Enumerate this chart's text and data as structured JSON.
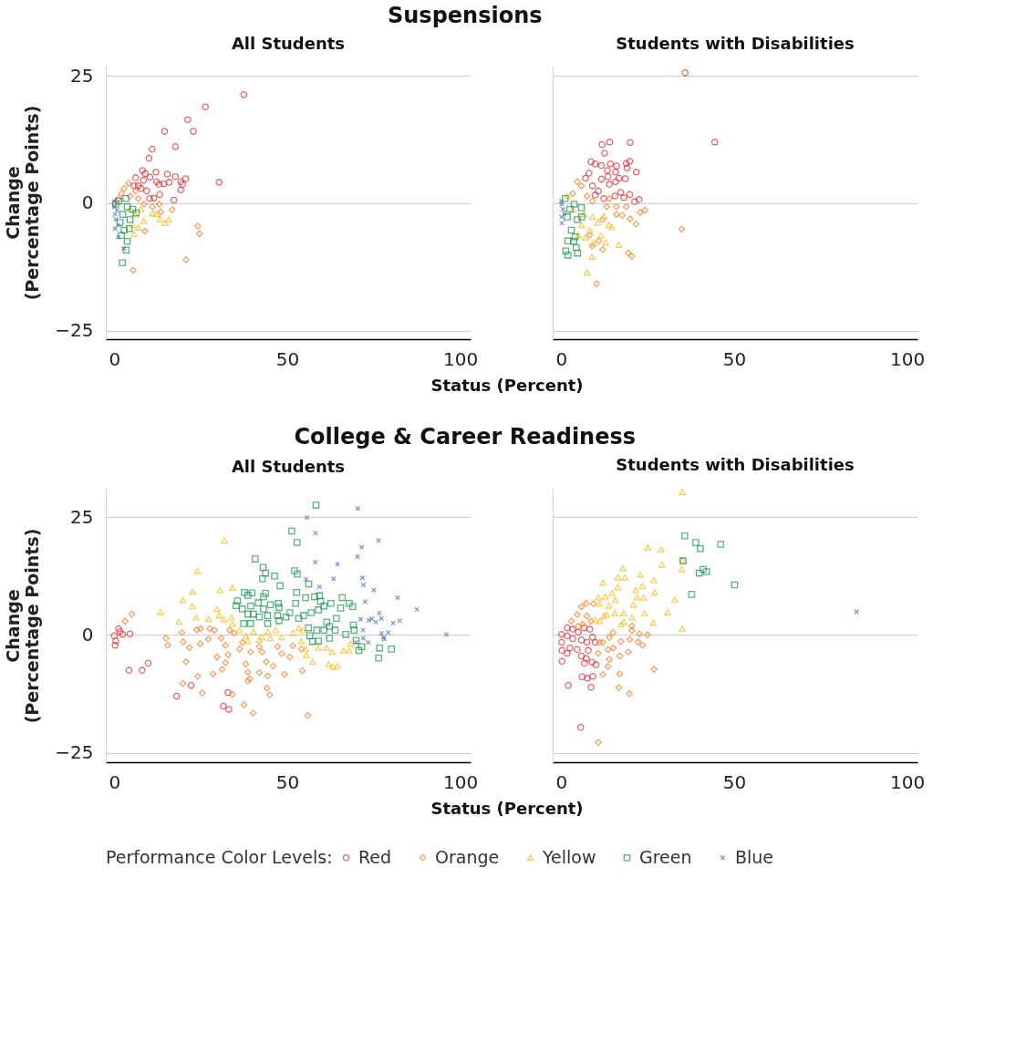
{
  "chart_data": [
    {
      "type": "scatter",
      "title": "Suspensions",
      "subtitle": "All Students",
      "xlabel": "Status (Percent)",
      "ylabel": "Change\n(Percentage Points)",
      "xlim": [
        -2.5,
        103
      ],
      "ylim": [
        -26.7,
        27
      ],
      "xticks": [
        0,
        50,
        100
      ],
      "yticks": [
        -25,
        0,
        25
      ],
      "grid": "y",
      "legend": "bottom",
      "legend_title": "Performance Color Levels:",
      "series": [
        {
          "name": "Red",
          "color": "#e31e25",
          "marker": "circle",
          "x": [
            37.4,
            26.3,
            21.2,
            14.5,
            22.8,
            17.6,
            10.9,
            10.0,
            30.3,
            8.1,
            12.0,
            15.3,
            17.6,
            20.6,
            19.2,
            19.7,
            19.2,
            17.2,
            15.8,
            14.3,
            12.9,
            10.3,
            8.9,
            8.4,
            13.1,
            11.4,
            10.2,
            6.1,
            6.9,
            9.3,
            5.7,
            7.7,
            12.2
          ],
          "values": [
            21.3,
            18.9,
            16.4,
            14.1,
            14.1,
            11.1,
            10.6,
            8.8,
            4.1,
            6.4,
            6.1,
            5.7,
            5.2,
            4.8,
            4.2,
            3.7,
            2.6,
            0.6,
            4.1,
            3.8,
            3.7,
            5.1,
            5.8,
            4.5,
            1.7,
            1.0,
            0.9,
            5.0,
            3.4,
            2.4,
            3.4,
            2.9,
            4.2
          ]
        },
        {
          "name": "Orange",
          "color": "#f47a20",
          "marker": "diamond",
          "x": [
            24.1,
            24.6,
            20.7,
            5.4,
            16.7,
            8.8,
            4.1,
            2.0,
            2.8,
            4.5,
            6.9,
            8.5,
            11.0,
            13.0,
            6.1,
            1.2,
            0,
            13.4
          ],
          "values": [
            -4.5,
            -6.0,
            -11.1,
            -13.2,
            -1.3,
            -5.5,
            3.9,
            1.9,
            2.9,
            1.4,
            0.9,
            -0.2,
            -0.7,
            -0.2,
            2.4,
            0.9,
            0,
            -1.7
          ]
        },
        {
          "name": "Yellow",
          "color": "#fdb913",
          "marker": "triangle",
          "x": [
            14.6,
            15.7,
            13.2,
            5.6,
            8.5,
            11.0,
            6.1,
            7.7,
            5.3,
            6.9,
            4.5,
            12.2
          ],
          "values": [
            -3.9,
            -3.2,
            -3.1,
            -6.1,
            -3.5,
            -2.0,
            -2.2,
            -1.2,
            -4.3,
            -4.8,
            -1.2,
            -2.1
          ]
        },
        {
          "name": "Green",
          "color": "#12934a",
          "marker": "square",
          "x": [
            2.3,
            3.4,
            3.7,
            2.0,
            4.3,
            2.8,
            6.3,
            1.2,
            3.7,
            5.3,
            2.4,
            4.5,
            1.6,
            0.4,
            3.3
          ],
          "values": [
            -11.7,
            -9.2,
            -7.5,
            -6.3,
            -5.0,
            -5.3,
            -1.9,
            0.4,
            -0.7,
            -1.2,
            -2.2,
            -3.2,
            -3.8,
            -0.2,
            0.9
          ]
        },
        {
          "name": "Blue",
          "color": "#4a6cb3",
          "marker": "cross",
          "x": [
            1.1,
            2.7,
            0.2,
            0.0,
            0.2,
            0.4,
            1.2,
            0,
            0.8
          ],
          "values": [
            -6.7,
            -8.9,
            -5.0,
            -0.7,
            -2.2,
            -3.2,
            -4.3,
            0.4,
            -1.4
          ]
        }
      ]
    },
    {
      "type": "scatter",
      "subtitle": "Students with Disabilities",
      "xlim": [
        -2.5,
        103
      ],
      "ylim": [
        -26.7,
        27
      ],
      "xticks": [
        0,
        50,
        100
      ],
      "yticks": [
        -25,
        0,
        25
      ],
      "grid": "y",
      "tick_labels": "x",
      "series": [
        {
          "name": "Red",
          "color": "#e31e25",
          "marker": "circle",
          "x": [
            35.8,
            44.4,
            11.8,
            14.0,
            19.9,
            12.5,
            8.6,
            9.8,
            11.6,
            14.2,
            16.0,
            18.8,
            19.8,
            19.0,
            21.7,
            13.3,
            15.7,
            8.0,
            13.5,
            16.7,
            18.5,
            7.0,
            11.6,
            13.9,
            15.7,
            17.2,
            19.8,
            15.5,
            18.1,
            22.5,
            21.2,
            10.7,
            9.8,
            12.3,
            9.0
          ],
          "values": [
            25.6,
            12.0,
            11.5,
            12.0,
            11.9,
            9.8,
            8.1,
            7.7,
            7.4,
            7.7,
            7.3,
            7.8,
            8.2,
            6.9,
            6.1,
            6.4,
            6.1,
            5.9,
            5.2,
            4.9,
            4.8,
            4.9,
            4.7,
            3.7,
            4.2,
            2.1,
            1.7,
            1.4,
            1.1,
            0.7,
            0.3,
            2.4,
            1.6,
            0.9,
            3.4
          ]
        },
        {
          "name": "Orange",
          "color": "#f47a20",
          "marker": "diamond",
          "x": [
            34.8,
            10.2,
            20.4,
            19.4,
            12.0,
            8.9,
            21.6,
            19.9,
            22.8,
            24.2,
            17.6,
            15.9,
            15.9,
            18.8,
            10.8,
            4.6,
            5.8,
            3.3,
            7.4,
            9.0,
            13.1,
            13.9,
            8.2,
            11.9
          ],
          "values": [
            -5.1,
            -15.8,
            -10.4,
            -9.8,
            -9.1,
            -8.4,
            -4.1,
            -3.1,
            -1.8,
            -1.4,
            -2.4,
            -2.2,
            -0.7,
            -0.7,
            -7.4,
            4.2,
            3.4,
            1.9,
            1.4,
            0.4,
            -0.7,
            0.9,
            -6.3,
            -3.2
          ]
        },
        {
          "name": "Yellow",
          "color": "#fdb913",
          "marker": "triangle",
          "x": [
            7.4,
            8.9,
            16.6,
            12.8,
            11.5,
            14.6,
            13.7,
            7.0,
            4.9,
            9.4,
            1.7,
            3.3,
            6.6,
            9.0,
            12.3,
            5.8,
            8.2,
            10.6
          ],
          "values": [
            -13.6,
            -10.5,
            -8.2,
            -7.7,
            -6.3,
            -4.7,
            -4.3,
            -6.7,
            -6.3,
            -7.9,
            1.4,
            -1.2,
            -2.2,
            -2.7,
            -2.5,
            -4.3,
            -5.3,
            -3.8
          ]
        },
        {
          "name": "Green",
          "color": "#12934a",
          "marker": "square",
          "x": [
            1.3,
            1.9,
            4.7,
            4.3,
            1.9,
            3.6,
            4.0,
            2.9,
            5.8,
            5.9,
            1.1,
            2.5,
            4.6,
            1.7,
            3.7
          ],
          "values": [
            -9.4,
            -10.2,
            -9.8,
            -8.7,
            -7.4,
            -7.5,
            -6.6,
            -5.3,
            -0.9,
            -2.7,
            0.9,
            -1.2,
            -3.2,
            -2.7,
            -0.2
          ]
        },
        {
          "name": "Blue",
          "color": "#4a6cb3",
          "marker": "cross",
          "x": [
            0.2,
            0.1,
            0.5,
            0.1,
            0.9,
            0
          ],
          "values": [
            -3.9,
            -0.2,
            -1.2,
            -2.7,
            -2.0,
            0.4
          ]
        }
      ]
    },
    {
      "type": "scatter",
      "title": "College & Career Readiness",
      "subtitle": "All Students",
      "xlabel": "Status (Percent)",
      "ylabel": "Change\n(Percentage Points)",
      "xlim": [
        -2.5,
        103
      ],
      "ylim": [
        -27,
        31
      ],
      "xticks": [
        0,
        50,
        100
      ],
      "yticks": [
        -25,
        0,
        25
      ],
      "grid": "y",
      "series": [
        {
          "name": "Red",
          "color": "#e31e25",
          "marker": "circle",
          "x": [
            0.2,
            0,
            1.2,
            2.4,
            4.5,
            0.4,
            4.2,
            8.0,
            9.8,
            18.0,
            22.2,
            31.5,
            33.1,
            32.8,
            1.6
          ],
          "values": [
            -2.2,
            -0.2,
            1.3,
            0.1,
            0.2,
            -1.3,
            -7.5,
            -7.5,
            -6.0,
            -13.0,
            -10.7,
            -15.1,
            -15.8,
            -12.2,
            0.7
          ]
        },
        {
          "name": "Orange",
          "color": "#f47a20",
          "marker": "diamond",
          "x": [
            5.0,
            3.1,
            14.9,
            15.4,
            19.5,
            19.9,
            21.7,
            20.7,
            19.8,
            24.1,
            25.4,
            23.8,
            24.9,
            24.8,
            27.2,
            27.6,
            28.9,
            29.7,
            28.5,
            31.1,
            30.9,
            32.1,
            32.9,
            34.1,
            37.4,
            40.1,
            55.9,
            38.6,
            39.1,
            38.6,
            38.0,
            36.2,
            34.6,
            37.0,
            39.4,
            41.9,
            42.7,
            43.9,
            44.3,
            44.1,
            44.9,
            41.9,
            45.9,
            47.2,
            48.4,
            49.2,
            50.7,
            51.6,
            54.3,
            54.1,
            33.3,
            32.1
          ],
          "values": [
            4.4,
            2.9,
            -0.7,
            -2.2,
            0.5,
            -1.5,
            -2.7,
            -5.7,
            -10.3,
            -8.8,
            -12.3,
            1.1,
            1.3,
            -1.9,
            -0.9,
            1.3,
            1.0,
            -4.7,
            -8.3,
            -7.3,
            -0.7,
            -2.2,
            -4.2,
            -12.6,
            -14.8,
            -16.6,
            -17.1,
            -9.8,
            -9.3,
            -7.9,
            -6.2,
            -3.0,
            0.4,
            -1.6,
            -3.6,
            -2.5,
            -3.6,
            -5.7,
            -8.7,
            -11.3,
            -12.7,
            -8.0,
            -6.6,
            -2.5,
            -4.0,
            -8.4,
            -4.7,
            -2.3,
            -7.6,
            -3.0,
            1.0,
            -5.9
          ]
        },
        {
          "name": "Yellow",
          "color": "#fdb913",
          "marker": "triangle",
          "x": [
            31.8,
            24.0,
            22.6,
            19.8,
            22.5,
            13.3,
            18.7,
            23.6,
            27.2,
            30.5,
            34.1,
            29.7,
            30.3,
            31.7,
            33.9,
            34.1,
            36.2,
            38.0,
            40.2,
            41.9,
            44.3,
            45.1,
            46.7,
            48.4,
            51.6,
            53.3,
            54.5,
            54.1,
            55.3,
            55.5,
            57.3,
            58.9,
            61.4,
            63.0,
            62.0,
            63.2,
            64.5,
            66.3,
            68.3,
            67.9,
            38.6,
            42.7
          ],
          "values": [
            20.0,
            13.6,
            9.2,
            7.4,
            6.1,
            4.9,
            2.8,
            3.7,
            3.4,
            9.5,
            10.0,
            5.5,
            4.1,
            3.3,
            3.7,
            2.3,
            1.0,
            -0.2,
            0.7,
            -1.0,
            0.7,
            -0.7,
            1.0,
            -0.5,
            0.4,
            1.5,
            1.0,
            -1.3,
            -3.0,
            -4.3,
            -5.7,
            -2.7,
            -2.7,
            -3.6,
            -6.2,
            -6.7,
            -6.6,
            -3.3,
            -1.9,
            -3.3,
            -1.3,
            -0.5
          ]
        },
        {
          "name": "Green",
          "color": "#12934a",
          "marker": "square",
          "x": [
            58.3,
            51.3,
            52.8,
            40.7,
            43.0,
            43.7,
            42.8,
            46.3,
            47.9,
            52.1,
            52.9,
            56.2,
            52.7,
            37.6,
            39.8,
            35.6,
            35.2,
            38.6,
            43.7,
            43.1,
            41.6,
            45.1,
            47.4,
            47.6,
            37.0,
            39.4,
            43.1,
            38.6,
            40.2,
            41.9,
            44.3,
            47.2,
            49.6,
            50.7,
            52.4,
            55.3,
            57.9,
            59.3,
            59.6,
            60.6,
            59.0,
            56.9,
            54.7,
            53.3,
            62.6,
            65.9,
            65.4,
            67.9,
            68.9,
            64.2,
            61.4,
            62.2,
            63.8,
            62.2,
            59.0,
            57.3,
            56.1,
            56.5,
            58.5,
            60.6,
            37.4,
            39.4,
            44.3,
            47.6,
            66.9,
            69.1,
            69.3,
            69.9,
            71.5,
            70.7,
            76.4,
            76.7,
            80.1
          ],
          "values": [
            27.5,
            22.0,
            19.6,
            16.1,
            14.3,
            13.1,
            11.9,
            12.5,
            10.4,
            13.6,
            12.9,
            10.8,
            9.0,
            9.0,
            8.9,
            7.2,
            6.2,
            8.4,
            8.8,
            8.1,
            6.8,
            6.4,
            6.7,
            5.8,
            5.5,
            6.1,
            5.5,
            4.4,
            4.4,
            3.8,
            4.1,
            4.1,
            3.8,
            4.7,
            6.7,
            7.9,
            8.1,
            8.3,
            7.1,
            6.1,
            5.3,
            4.7,
            4.1,
            3.5,
            6.7,
            7.9,
            5.7,
            6.7,
            6.0,
            3.5,
            2.7,
            1.8,
            1.0,
            -0.7,
            -1.3,
            -1.4,
            1.5,
            -0.2,
            1.0,
            1.0,
            2.4,
            2.4,
            2.4,
            3.0,
            0.1,
            2.1,
            1.0,
            -1.2,
            -2.5,
            -3.3,
            -4.9,
            -2.8,
            -3.0
          ]
        },
        {
          "name": "Blue",
          "color": "#4a6cb3",
          "marker": "cross",
          "x": [
            70.4,
            55.7,
            58.1,
            76.4,
            71.5,
            70.3,
            58.1,
            64.5,
            71.7,
            63.4,
            55.4,
            59.3,
            72.0,
            75.0,
            81.9,
            72.5,
            87.5,
            76.6,
            77.2,
            71.2,
            73.6,
            74.4,
            75.6,
            80.6,
            82.5,
            71.9,
            77.2,
            79.2,
            77.8,
            78.0,
            72.0,
            73.4,
            69.9,
            96.0
          ],
          "values": [
            26.8,
            24.9,
            21.6,
            20.0,
            18.6,
            16.6,
            15.4,
            15.0,
            12.1,
            11.9,
            11.8,
            10.2,
            10.6,
            9.5,
            7.9,
            7.0,
            5.4,
            4.6,
            3.5,
            3.3,
            3.1,
            3.4,
            2.7,
            2.5,
            3.0,
            1.0,
            0.3,
            0.5,
            -0.5,
            -0.9,
            -0.7,
            -1.6,
            -1.6,
            0.1
          ]
        }
      ]
    },
    {
      "type": "scatter",
      "subtitle": "Students with Disabilities",
      "xlim": [
        -2.5,
        103
      ],
      "ylim": [
        -27,
        31
      ],
      "xticks": [
        0,
        50,
        100
      ],
      "yticks": [
        -25,
        0,
        25
      ],
      "grid": "y",
      "tick_labels": "x",
      "series": [
        {
          "name": "Red",
          "color": "#e31e25",
          "marker": "circle",
          "x": [
            5.6,
            2.0,
            8.6,
            6.0,
            7.5,
            9.1,
            0.2,
            6.7,
            8.9,
            10.0,
            5.8,
            7.2,
            1.7,
            0.2,
            2.5,
            4.6,
            7.8,
            0.1,
            0.1,
            1.7,
            3.3,
            4.9,
            6.6,
            8.2,
            9.0,
            5.8,
            3.3,
            1.7,
            7.4,
            9.8
          ],
          "values": [
            -19.6,
            -10.7,
            -11.1,
            -8.9,
            -9.2,
            -8.8,
            -5.6,
            -6.0,
            -5.8,
            -6.3,
            -4.5,
            -5.0,
            -3.9,
            -3.3,
            -2.8,
            -3.1,
            -3.3,
            -1.6,
            0.1,
            1.5,
            1.2,
            0.6,
            1.5,
            1.2,
            -0.5,
            -1.1,
            -0.8,
            -0.2,
            -1.6,
            -1.6
          ]
        },
        {
          "name": "Orange",
          "color": "#f47a20",
          "marker": "diamond",
          "x": [
            10.7,
            19.7,
            16.6,
            12.0,
            16.9,
            26.8,
            13.5,
            13.9,
            16.9,
            19.4,
            15.1,
            13.5,
            12.0,
            17.2,
            19.8,
            22.2,
            23.5,
            22.6,
            24.9,
            20.4,
            20.4,
            14.9,
            13.9,
            10.7,
            11.1,
            5.8,
            7.2,
            9.3,
            4.6,
            2.9,
            7.4,
            8.6,
            6.2,
            4.9
          ],
          "values": [
            -22.8,
            -12.5,
            -11.2,
            -8.4,
            -8.3,
            -7.3,
            -6.7,
            -5.2,
            -4.5,
            -3.6,
            -2.8,
            -3.1,
            -1.6,
            -1.4,
            -1.0,
            -1.5,
            -2.2,
            0.2,
            0.0,
            1.9,
            0.9,
            0.5,
            -0.5,
            -3.9,
            -1.6,
            6.0,
            6.7,
            6.6,
            4.3,
            2.9,
            4.0,
            2.9,
            2.3,
            1.8
          ]
        },
        {
          "name": "Yellow",
          "color": "#fdb913",
          "marker": "triangle",
          "x": [
            35.0,
            25.0,
            28.9,
            29.1,
            34.8,
            35.0,
            17.8,
            16.4,
            18.4,
            22.8,
            26.8,
            12.0,
            16.3,
            23.5,
            21.5,
            27.0,
            14.7,
            21.9,
            23.8,
            32.8,
            10.7,
            12.7,
            15.6,
            20.8,
            13.7,
            11.1,
            30.8,
            24.1,
            20.4,
            18.0,
            15.5,
            13.1,
            26.6,
            18.1,
            17.2,
            35.0,
            11.1,
            12.3,
            9.8
          ],
          "values": [
            30.3,
            18.5,
            18.1,
            14.9,
            13.9,
            15.9,
            14.1,
            12.2,
            12.2,
            12.8,
            11.6,
            11.1,
            10.1,
            10.4,
            9.5,
            9.0,
            8.9,
            7.9,
            7.9,
            7.5,
            7.9,
            8.1,
            7.4,
            6.4,
            6.2,
            6.6,
            4.8,
            4.6,
            3.7,
            4.6,
            4.6,
            4.3,
            2.6,
            2.8,
            2.2,
            1.3,
            2.9,
            4.0,
            3.2
          ]
        },
        {
          "name": "Green",
          "color": "#12934a",
          "marker": "square",
          "x": [
            35.7,
            38.9,
            40.2,
            46.1,
            35.2,
            41.0,
            39.9,
            42.0,
            50.1,
            37.7
          ],
          "values": [
            21.0,
            19.6,
            18.3,
            19.2,
            15.7,
            13.9,
            13.1,
            13.4,
            10.6,
            8.6
          ]
        },
        {
          "name": "Blue",
          "color": "#4a6cb3",
          "marker": "cross",
          "x": [
            85.4
          ],
          "values": [
            4.9
          ]
        }
      ]
    }
  ]
}
